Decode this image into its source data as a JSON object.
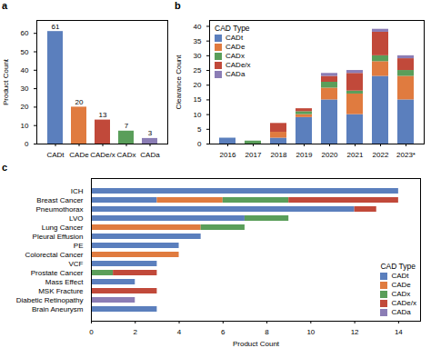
{
  "chart_data": [
    {
      "type": "bar",
      "title": "a",
      "categories": [
        "CADt",
        "CADe",
        "CADe/x",
        "CADx",
        "CADa"
      ],
      "values": [
        61,
        20,
        13,
        7,
        3
      ],
      "colors": [
        "#5b7fbd",
        "#e07b3f",
        "#c1493a",
        "#5a9e5a",
        "#8b7db5"
      ],
      "ylabel": "Product Count",
      "ylim": [
        0,
        67
      ],
      "yticks": [
        0,
        10,
        20,
        30,
        40,
        50,
        60
      ],
      "data_labels": true,
      "grid": false
    },
    {
      "type": "bar",
      "title": "b",
      "stacked": true,
      "categories": [
        "2016",
        "2017",
        "2018",
        "2019",
        "2020",
        "2021",
        "2022",
        "2023*"
      ],
      "series": [
        {
          "name": "CADt",
          "color": "#5b7fbd",
          "values": [
            2,
            0,
            2,
            9,
            15,
            10,
            23,
            15
          ]
        },
        {
          "name": "CADe",
          "color": "#e07b3f",
          "values": [
            0,
            0,
            2,
            1,
            4,
            7,
            5,
            8
          ]
        },
        {
          "name": "CADx",
          "color": "#5a9e5a",
          "values": [
            0,
            1,
            0,
            1,
            2,
            1,
            2,
            2
          ]
        },
        {
          "name": "CADe/x",
          "color": "#c1493a",
          "values": [
            0,
            0,
            3,
            1,
            2,
            6,
            8,
            4
          ]
        },
        {
          "name": "CADa",
          "color": "#8b7db5",
          "values": [
            0,
            0,
            0,
            0,
            1,
            1,
            1,
            1
          ]
        }
      ],
      "ylabel": "Clearance Count",
      "ylim": [
        0,
        42
      ],
      "yticks": [
        0,
        5,
        10,
        15,
        20,
        25,
        30,
        35,
        40
      ],
      "legend": "upper left",
      "legend_title": "CAD Type",
      "grid": false
    },
    {
      "type": "bar",
      "title": "c",
      "stacked": true,
      "orientation": "horizontal",
      "categories": [
        "ICH",
        "Breast Cancer",
        "Pneumothorax",
        "LVO",
        "Lung Cancer",
        "Pleural Effusion",
        "PE",
        "Colorectal Cancer",
        "VCF",
        "Prostate Cancer",
        "Mass Effect",
        "MSK Fracture",
        "Diabetic Retinopathy",
        "Brain Aneurysm"
      ],
      "series": [
        {
          "name": "CADt",
          "color": "#5b7fbd",
          "values": [
            14,
            3,
            12,
            7,
            0,
            5,
            4,
            0,
            3,
            0,
            2,
            0,
            0,
            3
          ]
        },
        {
          "name": "CADe",
          "color": "#e07b3f",
          "values": [
            0,
            3,
            0,
            0,
            5,
            0,
            0,
            4,
            0,
            0,
            0,
            0,
            0,
            0
          ]
        },
        {
          "name": "CADx",
          "color": "#5a9e5a",
          "values": [
            0,
            3,
            0,
            2,
            2,
            0,
            0,
            0,
            0,
            1,
            0,
            0,
            0,
            0
          ]
        },
        {
          "name": "CADe/x",
          "color": "#c1493a",
          "values": [
            0,
            5,
            1,
            0,
            0,
            0,
            0,
            0,
            0,
            2,
            0,
            3,
            0,
            0
          ]
        },
        {
          "name": "CADa",
          "color": "#8b7db5",
          "values": [
            0,
            0,
            0,
            0,
            0,
            0,
            0,
            0,
            0,
            0,
            0,
            0,
            2,
            0
          ]
        }
      ],
      "xlabel": "Product Count",
      "xlim": [
        0,
        15
      ],
      "xticks": [
        0,
        2,
        4,
        6,
        8,
        10,
        12,
        14
      ],
      "legend": "lower right",
      "legend_title": "CAD Type",
      "grid": false
    }
  ]
}
